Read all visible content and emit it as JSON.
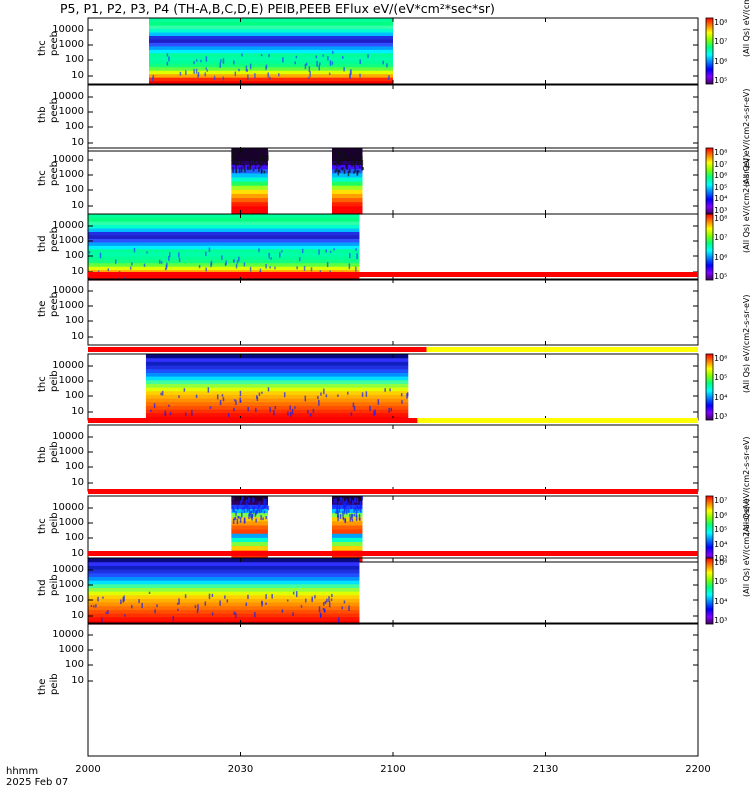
{
  "page": {
    "title": "P5, P1, P2, P3, P4 (TH-A,B,C,D,E) PEIB,PEEB EFlux eV/(eV*cm²*sec*sr)",
    "footer_line1": "hhmm",
    "footer_line2": "2025 Feb 07"
  },
  "chart_data": {
    "type": "heatmap",
    "x_axis": {
      "label": "hhmm",
      "ticks": [
        "2000",
        "2030",
        "2100",
        "2130",
        "2200"
      ]
    },
    "y_ticks": [
      "10000",
      "1000",
      "100",
      "10"
    ],
    "colorbar_units_text": "(All Qs) eV/(cm2-s-sr-eV)",
    "panels": [
      {
        "probe": "thc",
        "instrument": "peeb",
        "label": "thc\npeeb",
        "data_ranges": [
          [
            20,
            100
          ]
        ],
        "palette": "green",
        "colorbar": [
          "10⁸",
          "10⁷",
          "10⁶",
          "10⁵"
        ],
        "status_bar": []
      },
      {
        "probe": "thb",
        "instrument": "peeb",
        "label": "thb\npeeb",
        "data_ranges": [],
        "palette": "none",
        "colorbar": [],
        "status_bar": []
      },
      {
        "probe": "thc",
        "instrument": "peeb",
        "label": "thc\npeeb",
        "data_ranges": [
          [
            47,
            59
          ],
          [
            80,
            90
          ]
        ],
        "palette": "hot",
        "colorbar": [
          "10⁸",
          "10⁷",
          "10⁶",
          "10⁵",
          "10⁴",
          "10³"
        ],
        "status_bar": []
      },
      {
        "probe": "thd",
        "instrument": "peeb",
        "label": "thd\npeeb",
        "data_ranges": [
          [
            0,
            89
          ]
        ],
        "palette": "green",
        "colorbar": [
          "10⁸",
          "10⁷",
          "10⁶",
          "10⁵"
        ],
        "status_bar": []
      },
      {
        "probe": "the",
        "instrument": "peeb",
        "label": "the\npeeb",
        "data_ranges": [],
        "palette": "none",
        "colorbar": [],
        "status_bar": [
          {
            "from": 0,
            "to": 200,
            "color": "red"
          }
        ]
      },
      {
        "probe": "thc",
        "instrument": "peib",
        "label": "thc\npeib",
        "data_ranges": [
          [
            19,
            105
          ]
        ],
        "palette": "ion",
        "colorbar": [
          "10⁶",
          "10⁵",
          "10⁴",
          "10³"
        ],
        "status_bar": [
          {
            "from": 0,
            "to": 111,
            "color": "red"
          },
          {
            "from": 111,
            "to": 200,
            "color": "yellow"
          }
        ]
      },
      {
        "probe": "thb",
        "instrument": "peib",
        "label": "thb\npeib",
        "data_ranges": [],
        "palette": "none",
        "colorbar": [],
        "status_bar": [
          {
            "from": 0,
            "to": 108,
            "color": "red"
          },
          {
            "from": 108,
            "to": 200,
            "color": "yellow"
          }
        ]
      },
      {
        "probe": "thc",
        "instrument": "peib",
        "label": "thc\npeib",
        "data_ranges": [
          [
            47,
            59
          ],
          [
            80,
            90
          ]
        ],
        "palette": "ion2",
        "colorbar": [
          "10⁷",
          "10⁶",
          "10⁵",
          "10⁴",
          "10³"
        ],
        "status_bar": [
          {
            "from": 0,
            "to": 200,
            "color": "red"
          }
        ]
      },
      {
        "probe": "thd",
        "instrument": "peib",
        "label": "thd\npeib",
        "data_ranges": [
          [
            0,
            89
          ]
        ],
        "palette": "ion",
        "colorbar": [
          "10⁶",
          "10⁵",
          "10⁴",
          "10³"
        ],
        "status_bar": [
          {
            "from": 0,
            "to": 200,
            "color": "red"
          }
        ]
      },
      {
        "probe": "the",
        "instrument": "peib",
        "label": "the\npeib",
        "data_ranges": [],
        "palette": "none",
        "colorbar": [],
        "status_bar": []
      }
    ]
  }
}
